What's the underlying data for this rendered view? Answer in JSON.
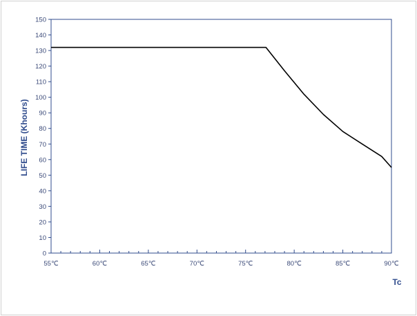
{
  "chart_data": {
    "type": "line",
    "title": "",
    "ylabel": "LIFE TIME (Khours)",
    "xlabel": "Tc",
    "xlim": [
      55,
      90
    ],
    "ylim": [
      0,
      150
    ],
    "x_ticks": [
      55,
      60,
      65,
      70,
      75,
      80,
      85,
      90
    ],
    "x_tick_labels": [
      "55℃",
      "60℃",
      "65℃",
      "70℃",
      "75℃",
      "80℃",
      "85℃",
      "90℃"
    ],
    "y_ticks": [
      0,
      10,
      20,
      30,
      40,
      50,
      60,
      70,
      80,
      90,
      100,
      110,
      120,
      130,
      140,
      150
    ],
    "y_tick_labels": [
      "0",
      "10",
      "20",
      "30",
      "40",
      "50",
      "60",
      "70",
      "80",
      "90",
      "100",
      "110",
      "120",
      "130",
      "140",
      "150"
    ],
    "grid": false,
    "series": [
      {
        "x": [
          55,
          77.1,
          79,
          81,
          83,
          85,
          87,
          89,
          90
        ],
        "y": [
          132,
          132,
          117,
          102,
          89,
          78,
          70,
          62,
          55
        ],
        "color": "#000000"
      }
    ],
    "colors": {
      "axis": "#2f4b8c",
      "text": "#3b4a78",
      "line": "#000000"
    }
  }
}
